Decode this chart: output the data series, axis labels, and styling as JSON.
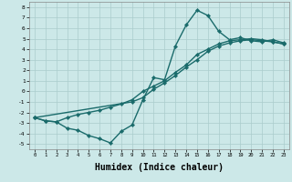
{
  "bg_color": "#cce8e8",
  "grid_color": "#aacccc",
  "line_color": "#1a6b6b",
  "marker": "D",
  "markersize": 2.2,
  "linewidth": 1.0,
  "xlabel": "Humidex (Indice chaleur)",
  "xlabel_fontsize": 7,
  "xlim": [
    -0.5,
    23.5
  ],
  "ylim": [
    -5.5,
    8.5
  ],
  "xticks": [
    0,
    1,
    2,
    3,
    4,
    5,
    6,
    7,
    8,
    9,
    10,
    11,
    12,
    13,
    14,
    15,
    16,
    17,
    18,
    19,
    20,
    21,
    22,
    23
  ],
  "yticks": [
    -5,
    -4,
    -3,
    -2,
    -1,
    0,
    1,
    2,
    3,
    4,
    5,
    6,
    7,
    8
  ],
  "curve1_x": [
    0,
    1,
    2,
    3,
    4,
    5,
    6,
    7,
    8,
    9,
    10,
    11,
    12,
    13,
    14,
    15,
    16,
    17,
    18,
    19,
    20,
    21,
    22,
    23
  ],
  "curve1_y": [
    -2.5,
    -2.8,
    -2.9,
    -3.5,
    -3.7,
    -4.2,
    -4.5,
    -4.9,
    -3.8,
    -3.2,
    -0.8,
    1.3,
    1.1,
    4.3,
    6.3,
    7.7,
    7.2,
    5.7,
    4.9,
    5.1,
    4.8,
    4.7,
    4.9,
    4.6
  ],
  "curve2_x": [
    0,
    1,
    2,
    3,
    4,
    5,
    6,
    7,
    8,
    9,
    10,
    11,
    12,
    13,
    14,
    15,
    16,
    17,
    18,
    19,
    20,
    21,
    22,
    23
  ],
  "curve2_y": [
    -2.5,
    -2.8,
    -2.9,
    -2.5,
    -2.2,
    -2.0,
    -1.8,
    -1.5,
    -1.2,
    -0.8,
    0.0,
    0.5,
    1.0,
    1.8,
    2.5,
    3.5,
    4.0,
    4.5,
    4.8,
    4.9,
    5.0,
    4.9,
    4.7,
    4.5
  ],
  "curve3_x": [
    0,
    9,
    10,
    11,
    12,
    13,
    14,
    15,
    16,
    17,
    18,
    19,
    20,
    21,
    22,
    23
  ],
  "curve3_y": [
    -2.5,
    -1.0,
    -0.6,
    0.2,
    0.8,
    1.5,
    2.3,
    3.0,
    3.8,
    4.3,
    4.6,
    4.8,
    4.9,
    4.8,
    4.7,
    4.5
  ]
}
